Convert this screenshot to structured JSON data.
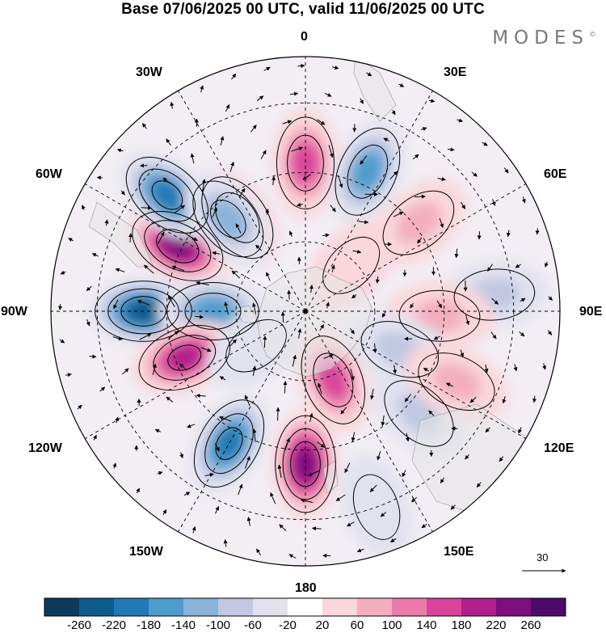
{
  "title": "Base 07/06/2025 00 UTC, valid 11/06/2025 00 UTC",
  "brand": "MODES",
  "brand_mark": "©",
  "longitude_labels": {
    "lon_0": "0",
    "lon_30e": "30E",
    "lon_60e": "60E",
    "lon_90e": "90E",
    "lon_120e": "120E",
    "lon_150e": "150E",
    "lon_180": "180",
    "lon_150w": "150W",
    "lon_120w": "120W",
    "lon_90w": "90W",
    "lon_60w": "60W",
    "lon_30w": "30W"
  },
  "vector_scale": {
    "value": "30"
  },
  "colorbar": {
    "tick_labels": [
      "-260",
      "-220",
      "-180",
      "-140",
      "-100",
      "-60",
      "-20",
      "20",
      "60",
      "100",
      "140",
      "180",
      "220",
      "260"
    ],
    "colors": [
      "#0d3a5c",
      "#0e5c8c",
      "#2179b4",
      "#4c9ccc",
      "#8ab3d9",
      "#c0c8e2",
      "#e2e2ef",
      "#ffffff",
      "#f9d7dc",
      "#f4aec1",
      "#ec7bac",
      "#d8449b",
      "#b11f8a",
      "#7d0f80",
      "#4e0a6b"
    ]
  },
  "field": {
    "anomalies": [
      {
        "lon": -63,
        "colat": 31,
        "value": 245
      },
      {
        "lon": -36,
        "colat": 25,
        "value": 165
      },
      {
        "lon": -90,
        "colat": 35,
        "value": -245
      },
      {
        "lon": -90,
        "colat": 20,
        "value": -150
      },
      {
        "lon": -50,
        "colat": 39,
        "value": -185
      },
      {
        "lon": -40,
        "colat": 26,
        "value": -120
      },
      {
        "lon": 0,
        "colat": 32,
        "value": 160
      },
      {
        "lon": 24,
        "colat": 33,
        "value": -175
      },
      {
        "lon": 52,
        "colat": 31,
        "value": 95
      },
      {
        "lon": 85,
        "colat": 41,
        "value": -90
      },
      {
        "lon": 92,
        "colat": 29,
        "value": 60
      },
      {
        "lon": -111,
        "colat": 28,
        "value": 180
      },
      {
        "lon": -150,
        "colat": 33,
        "value": -215
      },
      {
        "lon": 180,
        "colat": 33,
        "value": 240
      },
      {
        "lon": 158,
        "colat": 16,
        "value": 150
      },
      {
        "lon": 132,
        "colat": 33,
        "value": -85
      },
      {
        "lon": 112,
        "colat": 22,
        "value": -60
      },
      {
        "lon": 115,
        "colat": 36,
        "value": 65
      },
      {
        "lon": 45,
        "colat": 14,
        "value": 55
      },
      {
        "lon": 160,
        "colat": 45,
        "value": -25
      },
      {
        "lon": -125,
        "colat": 13,
        "value": -40
      }
    ]
  }
}
